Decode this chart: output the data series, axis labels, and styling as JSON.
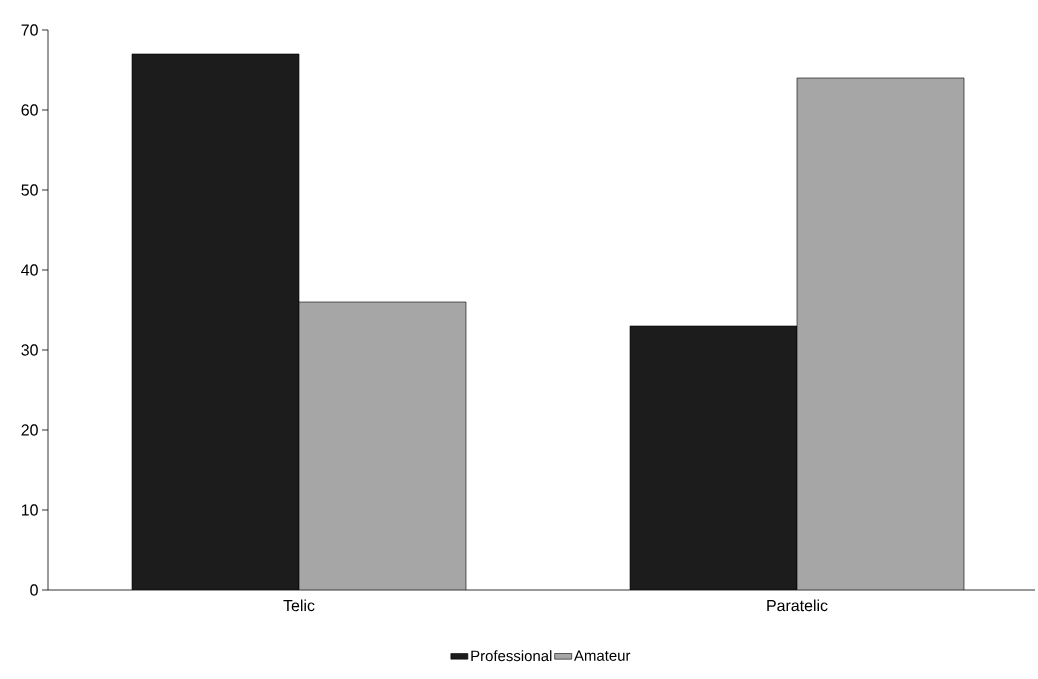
{
  "chart_data": {
    "type": "bar",
    "categories": [
      "Telic",
      "Paratelic"
    ],
    "series": [
      {
        "name": "Professional",
        "color": "#1c1c1c",
        "values": [
          67,
          33
        ]
      },
      {
        "name": "Amateur",
        "color": "#a6a6a6",
        "values": [
          36,
          64
        ]
      }
    ],
    "ylim": [
      0,
      70
    ],
    "yticks": [
      0,
      10,
      20,
      30,
      40,
      50,
      60,
      70
    ],
    "grid": false,
    "legend": "bottom"
  }
}
